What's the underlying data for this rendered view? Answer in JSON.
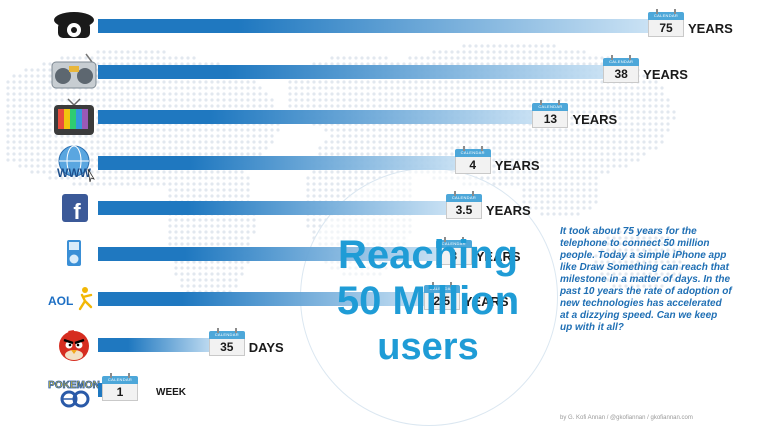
{
  "colors": {
    "bar": "#1f78c0",
    "title": "#1f9cd6",
    "text": "#1f6fb4",
    "calendar": "#4da7d9"
  },
  "calendar_caption": "CALENDAR",
  "title": {
    "line1": "Reaching",
    "line2": "50 Million",
    "line3": "users"
  },
  "description": "It took about 75 years for the telephone to connect 50 million people. Today a simple iPhone app like Draw Something can reach that milestone in a matter of days. In the past 10 years the rate of adoption of new technologies has accelerated at a dizzying speed. Can we keep up with it all?",
  "credit": "by G. Kofi Annan / @gkofiannan / gkofiannan.com",
  "chart_data": {
    "type": "bar",
    "orientation": "horizontal",
    "title": "Reaching 50 Million users",
    "categories": [
      "telephone-icon",
      "radio-icon",
      "television-icon",
      "www-icon",
      "facebook-icon",
      "ipod-icon",
      "aol-icon",
      "angry-birds-icon",
      "pokemon-go-icon"
    ],
    "items": [
      {
        "icon": "telephone-icon",
        "value": "75",
        "unit": "YEARS",
        "years": 75
      },
      {
        "icon": "radio-icon",
        "value": "38",
        "unit": "YEARS",
        "years": 38
      },
      {
        "icon": "television-icon",
        "value": "13",
        "unit": "YEARS",
        "years": 13
      },
      {
        "icon": "www-icon",
        "value": "4",
        "unit": "YEARS",
        "years": 4
      },
      {
        "icon": "facebook-icon",
        "value": "3.5",
        "unit": "YEARS",
        "years": 3.5
      },
      {
        "icon": "ipod-icon",
        "value": "3",
        "unit": "YEARS",
        "years": 3
      },
      {
        "icon": "aol-icon",
        "value": "2.5",
        "unit": "YEARS",
        "years": 2.5,
        "label": "AOL"
      },
      {
        "icon": "angry-birds-icon",
        "value": "35",
        "unit": "DAYS",
        "years": 0.096
      },
      {
        "icon": "pokemon-go-icon",
        "value": "1",
        "unit": "WEEK",
        "years": 0.019
      }
    ]
  }
}
